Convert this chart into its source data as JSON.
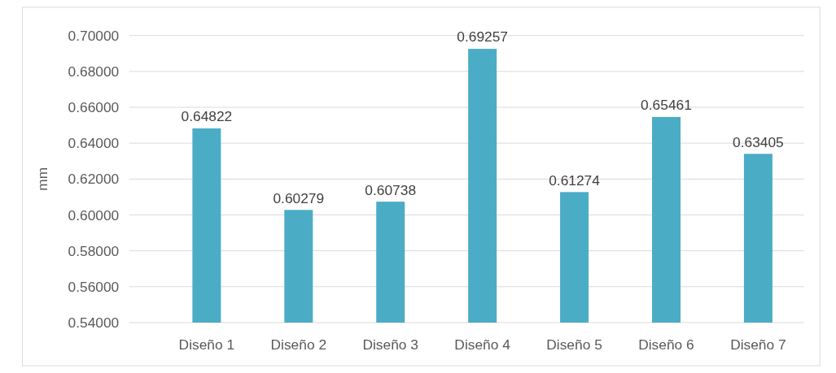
{
  "chart_data": {
    "type": "bar",
    "ylabel": "mm",
    "categories": [
      "Diseño 1",
      "Diseño 2",
      "Diseño 3",
      "Diseño 4",
      "Diseño 5",
      "Diseño 6",
      "Diseño 7"
    ],
    "values": [
      0.64822,
      0.60279,
      0.60738,
      0.69257,
      0.61274,
      0.65461,
      0.63405
    ],
    "color": "#4bacc6",
    "ylim": [
      0.54,
      0.7
    ],
    "yticks": [
      {
        "value": 0.54,
        "label": "0.54000"
      },
      {
        "value": 0.56,
        "label": "0.56000"
      },
      {
        "value": 0.58,
        "label": "0.58000"
      },
      {
        "value": 0.6,
        "label": "0.60000"
      },
      {
        "value": 0.62,
        "label": "0.62000"
      },
      {
        "value": 0.64,
        "label": "0.64000"
      },
      {
        "value": 0.66,
        "label": "0.66000"
      },
      {
        "value": 0.68,
        "label": "0.68000"
      },
      {
        "value": 0.7,
        "label": "0.70000"
      }
    ],
    "grid": true,
    "data_labels": true
  }
}
